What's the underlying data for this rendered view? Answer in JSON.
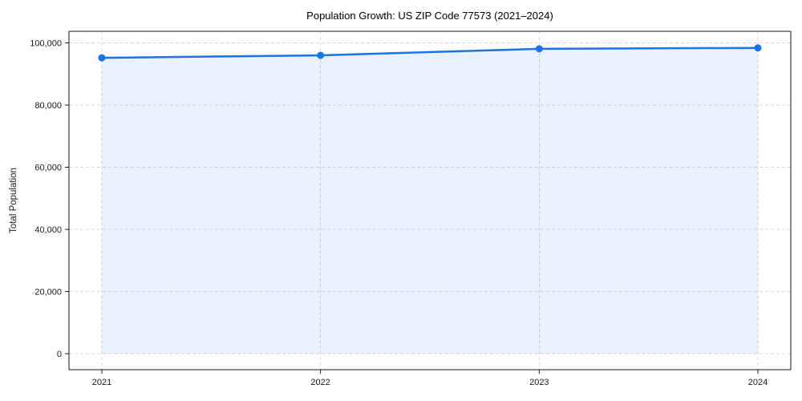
{
  "chart_data": {
    "type": "area",
    "title": "Population Growth: US ZIP Code 77573 (2021–2024)",
    "xlabel": "",
    "ylabel": "Total Population",
    "x": [
      2021,
      2022,
      2023,
      2024
    ],
    "xtick_labels": [
      "2021",
      "2022",
      "2023",
      "2024"
    ],
    "series": [
      {
        "name": "Total Population",
        "values": [
          95200,
          96000,
          98100,
          98400
        ]
      }
    ],
    "ylim": [
      0,
      100000
    ],
    "yticks": [
      0,
      20000,
      40000,
      60000,
      80000,
      100000
    ],
    "ytick_labels": [
      "0",
      "20,000",
      "40,000",
      "60,000",
      "80,000",
      "100,000"
    ],
    "grid": true,
    "grid_style": "dashed",
    "legend": "none",
    "marker": "circle",
    "colors": {
      "line": "#1a73e8",
      "marker": "#1a73e8",
      "fill": "rgba(26,115,232,0.10)",
      "grid": "#d7d7d7",
      "axis_border": "#1a1a1a",
      "text": "#1a1a1a",
      "title_text": "#000000",
      "background": "#ffffff"
    }
  }
}
